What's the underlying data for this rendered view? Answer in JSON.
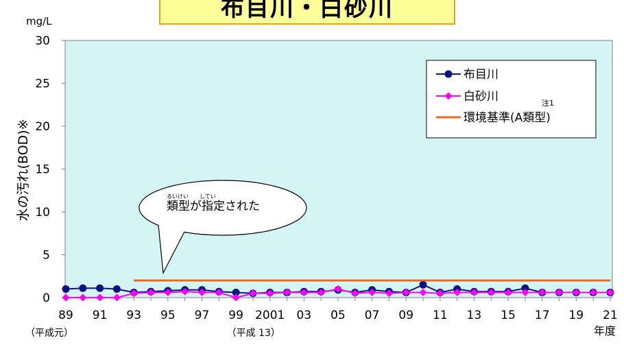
{
  "title": "布目川・白砂川",
  "chart_data": {
    "type": "line",
    "unit_label": "mg/L",
    "ylabel": "水の汚れ(BOD)※",
    "xlabel": "年度",
    "ylim": [
      0,
      30
    ],
    "yticks": [
      "0",
      "5",
      "10",
      "15",
      "20",
      "25",
      "30"
    ],
    "categories": [
      "89",
      "90",
      "91",
      "92",
      "93",
      "94",
      "95",
      "96",
      "97",
      "98",
      "99",
      "2000",
      "2001",
      "02",
      "03",
      "04",
      "05",
      "06",
      "07",
      "08",
      "09",
      "10",
      "11",
      "12",
      "13",
      "14",
      "15",
      "16",
      "17",
      "18",
      "19",
      "20",
      "21"
    ],
    "tick_labels": [
      "89",
      "91",
      "93",
      "95",
      "97",
      "99",
      "2001",
      "03",
      "05",
      "07",
      "09",
      "11",
      "13",
      "15",
      "17",
      "19",
      "21"
    ],
    "era_labels": [
      {
        "at": "89",
        "text": "（平成元）"
      },
      {
        "at": "2001",
        "text": "（平成 13）"
      }
    ],
    "series": [
      {
        "name": "布目川",
        "color": "#0a1280",
        "marker": "circle",
        "values": [
          1.0,
          1.1,
          1.1,
          1.0,
          0.6,
          0.7,
          0.8,
          0.9,
          0.9,
          0.7,
          0.6,
          0.5,
          0.6,
          0.6,
          0.7,
          0.7,
          0.9,
          0.6,
          0.9,
          0.7,
          0.6,
          1.5,
          0.6,
          1.0,
          0.7,
          0.7,
          0.7,
          1.1,
          0.6,
          0.6,
          0.6,
          0.6,
          0.6
        ]
      },
      {
        "name": "白砂川",
        "color": "#ff00ff",
        "marker": "diamond",
        "values": [
          0.0,
          0.0,
          0.0,
          0.0,
          0.5,
          0.6,
          0.6,
          0.7,
          0.6,
          0.6,
          0.0,
          0.5,
          0.5,
          0.6,
          0.6,
          0.6,
          1.0,
          0.5,
          0.6,
          0.5,
          0.6,
          0.6,
          0.5,
          0.6,
          0.6,
          0.6,
          0.6,
          0.6,
          0.6,
          0.6,
          0.6,
          0.6,
          0.6
        ]
      },
      {
        "name": "環境基準(A類型)",
        "color": "#ea6a1b",
        "marker": "none",
        "from": "93",
        "to": "21",
        "value": 2.0
      }
    ],
    "note": "注1",
    "legend_position": "top-right",
    "grid": false
  },
  "callout": {
    "text": "類型が指定された",
    "ruby_1": "るいけい",
    "ruby_2": "してい"
  },
  "colors": {
    "plot_background": "#d5f4f4",
    "title_background": "#ffff99",
    "title_border": "#e6a117"
  }
}
